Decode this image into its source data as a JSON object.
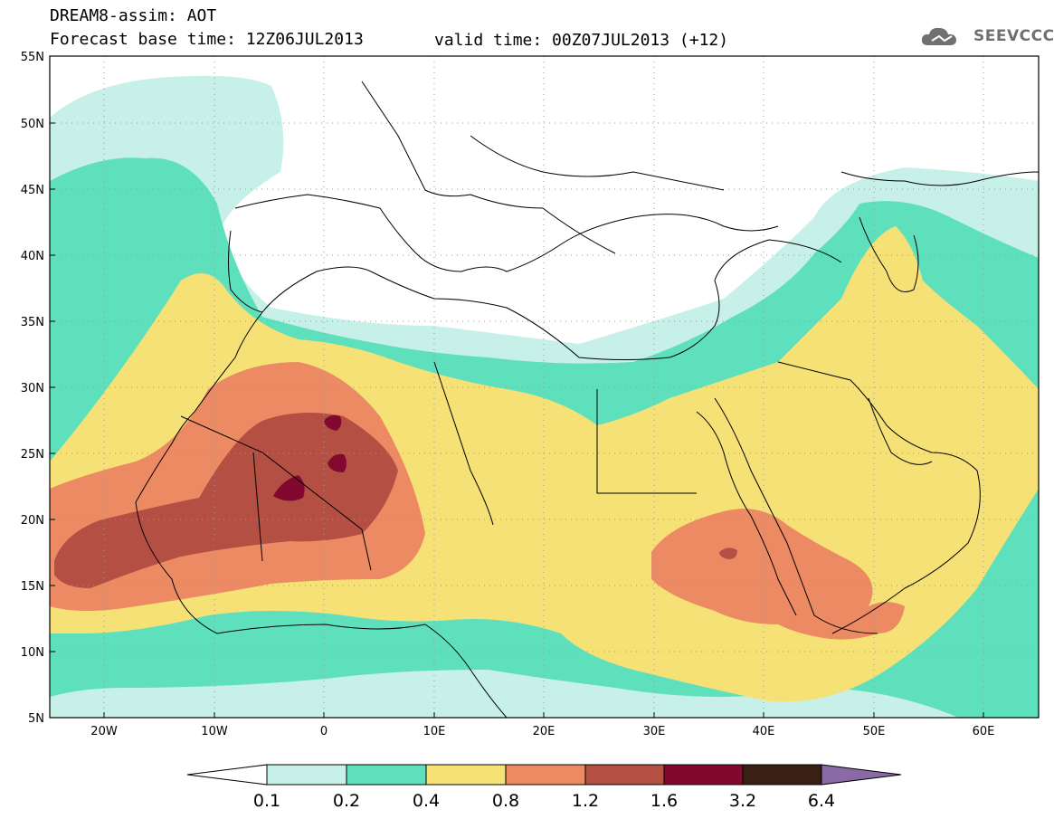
{
  "header": {
    "title_line1": "DREAM8-assim: AOT",
    "base_time": "Forecast base time: 12Z06JUL2013",
    "valid_time": "valid time: 00Z07JUL2013 (+12)",
    "logo_text": "SEEVCCC"
  },
  "map": {
    "lat_labels": [
      "55N",
      "50N",
      "45N",
      "40N",
      "35N",
      "30N",
      "25N",
      "20N",
      "15N",
      "10N",
      "5N"
    ],
    "lon_labels": [
      "20W",
      "10W",
      "0",
      "10E",
      "20E",
      "30E",
      "40E",
      "50E",
      "60E"
    ]
  },
  "colorbar": {
    "labels": [
      "0.1",
      "0.2",
      "0.4",
      "0.8",
      "1.2",
      "1.6",
      "3.2",
      "6.4"
    ],
    "colors": [
      "#ffffff",
      "#c7f0e8",
      "#5ee0bd",
      "#f5e176",
      "#ec8b63",
      "#b44f43",
      "#82082f",
      "#3a1f14",
      "#8a6aa4"
    ]
  }
}
